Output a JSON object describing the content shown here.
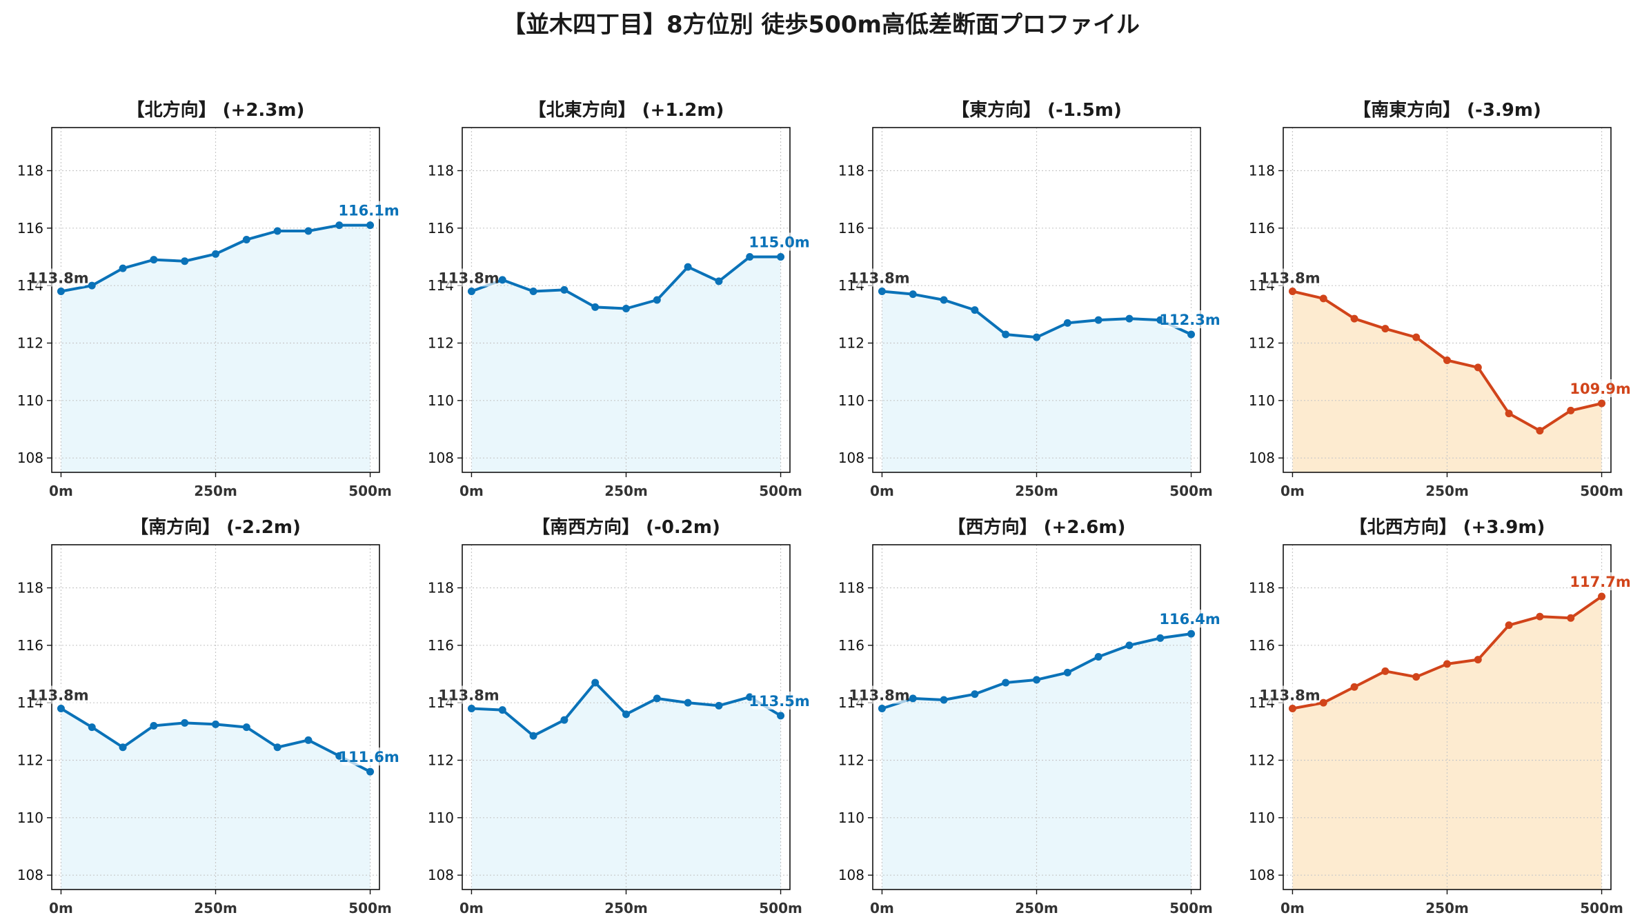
{
  "title": "【並木四丁目】8方位別 徒歩500m高低差断面プロファイル",
  "colors": {
    "up_line": "#0a72b8",
    "up_fill": "#eaf7fc",
    "steep_line": "#d1441a",
    "steep_fill": "#fdebd0",
    "start_label": "#333333",
    "grid": "#c8c8c8"
  },
  "chart_data": [
    {
      "type": "line",
      "title": "【北方向】 (+2.3m)",
      "x": [
        0,
        50,
        100,
        150,
        200,
        250,
        300,
        350,
        400,
        450,
        500
      ],
      "y": [
        113.8,
        114.0,
        114.6,
        114.9,
        114.85,
        115.1,
        115.6,
        115.9,
        115.9,
        116.1,
        116.1
      ],
      "start_label": "113.8m",
      "end_label": "116.1m",
      "style": "blue",
      "xticks": [
        "0m",
        "250m",
        "500m"
      ],
      "yticks": [
        108,
        110,
        112,
        114,
        116,
        118
      ],
      "ylim": [
        107.5,
        119.5
      ],
      "xlim": [
        -15,
        515
      ],
      "grid": true
    },
    {
      "type": "line",
      "title": "【北東方向】 (+1.2m)",
      "x": [
        0,
        50,
        100,
        150,
        200,
        250,
        300,
        350,
        400,
        450,
        500
      ],
      "y": [
        113.8,
        114.2,
        113.8,
        113.85,
        113.25,
        113.2,
        113.5,
        114.65,
        114.15,
        115.0,
        115.0
      ],
      "start_label": "113.8m",
      "end_label": "115.0m",
      "style": "blue",
      "xticks": [
        "0m",
        "250m",
        "500m"
      ],
      "yticks": [
        108,
        110,
        112,
        114,
        116,
        118
      ],
      "ylim": [
        107.5,
        119.5
      ],
      "xlim": [
        -15,
        515
      ],
      "grid": true
    },
    {
      "type": "line",
      "title": "【東方向】 (-1.5m)",
      "x": [
        0,
        50,
        100,
        150,
        200,
        250,
        300,
        350,
        400,
        450,
        500
      ],
      "y": [
        113.8,
        113.7,
        113.5,
        113.15,
        112.3,
        112.2,
        112.7,
        112.8,
        112.85,
        112.8,
        112.3
      ],
      "start_label": "113.8m",
      "end_label": "112.3m",
      "style": "blue",
      "xticks": [
        "0m",
        "250m",
        "500m"
      ],
      "yticks": [
        108,
        110,
        112,
        114,
        116,
        118
      ],
      "ylim": [
        107.5,
        119.5
      ],
      "xlim": [
        -15,
        515
      ],
      "grid": true
    },
    {
      "type": "line",
      "title": "【南東方向】 (-3.9m)",
      "x": [
        0,
        50,
        100,
        150,
        200,
        250,
        300,
        350,
        400,
        450,
        500
      ],
      "y": [
        113.8,
        113.55,
        112.85,
        112.5,
        112.2,
        111.4,
        111.15,
        109.55,
        108.95,
        109.65,
        109.9
      ],
      "start_label": "113.8m",
      "end_label": "109.9m",
      "style": "orange",
      "xticks": [
        "0m",
        "250m",
        "500m"
      ],
      "yticks": [
        108,
        110,
        112,
        114,
        116,
        118
      ],
      "ylim": [
        107.5,
        119.5
      ],
      "xlim": [
        -15,
        515
      ],
      "grid": true
    },
    {
      "type": "line",
      "title": "【南方向】 (-2.2m)",
      "x": [
        0,
        50,
        100,
        150,
        200,
        250,
        300,
        350,
        400,
        450,
        500
      ],
      "y": [
        113.8,
        113.15,
        112.45,
        113.2,
        113.3,
        113.25,
        113.15,
        112.45,
        112.7,
        112.15,
        111.6
      ],
      "start_label": "113.8m",
      "end_label": "111.6m",
      "style": "blue",
      "xticks": [
        "0m",
        "250m",
        "500m"
      ],
      "yticks": [
        108,
        110,
        112,
        114,
        116,
        118
      ],
      "ylim": [
        107.5,
        119.5
      ],
      "xlim": [
        -15,
        515
      ],
      "grid": true
    },
    {
      "type": "line",
      "title": "【南西方向】 (-0.2m)",
      "x": [
        0,
        50,
        100,
        150,
        200,
        250,
        300,
        350,
        400,
        450,
        500
      ],
      "y": [
        113.8,
        113.75,
        112.85,
        113.4,
        114.7,
        113.6,
        114.15,
        114.0,
        113.9,
        114.2,
        113.55
      ],
      "start_label": "113.8m",
      "end_label": "113.5m",
      "style": "blue",
      "xticks": [
        "0m",
        "250m",
        "500m"
      ],
      "yticks": [
        108,
        110,
        112,
        114,
        116,
        118
      ],
      "ylim": [
        107.5,
        119.5
      ],
      "xlim": [
        -15,
        515
      ],
      "grid": true
    },
    {
      "type": "line",
      "title": "【西方向】 (+2.6m)",
      "x": [
        0,
        50,
        100,
        150,
        200,
        250,
        300,
        350,
        400,
        450,
        500
      ],
      "y": [
        113.8,
        114.15,
        114.1,
        114.3,
        114.7,
        114.8,
        115.05,
        115.6,
        116.0,
        116.25,
        116.4
      ],
      "start_label": "113.8m",
      "end_label": "116.4m",
      "style": "blue",
      "xticks": [
        "0m",
        "250m",
        "500m"
      ],
      "yticks": [
        108,
        110,
        112,
        114,
        116,
        118
      ],
      "ylim": [
        107.5,
        119.5
      ],
      "xlim": [
        -15,
        515
      ],
      "grid": true
    },
    {
      "type": "line",
      "title": "【北西方向】 (+3.9m)",
      "x": [
        0,
        50,
        100,
        150,
        200,
        250,
        300,
        350,
        400,
        450,
        500
      ],
      "y": [
        113.8,
        114.0,
        114.55,
        115.1,
        114.9,
        115.35,
        115.5,
        116.7,
        117.0,
        116.95,
        117.7
      ],
      "start_label": "113.8m",
      "end_label": "117.7m",
      "style": "orange",
      "xticks": [
        "0m",
        "250m",
        "500m"
      ],
      "yticks": [
        108,
        110,
        112,
        114,
        116,
        118
      ],
      "ylim": [
        107.5,
        119.5
      ],
      "xlim": [
        -15,
        515
      ],
      "grid": true
    }
  ]
}
